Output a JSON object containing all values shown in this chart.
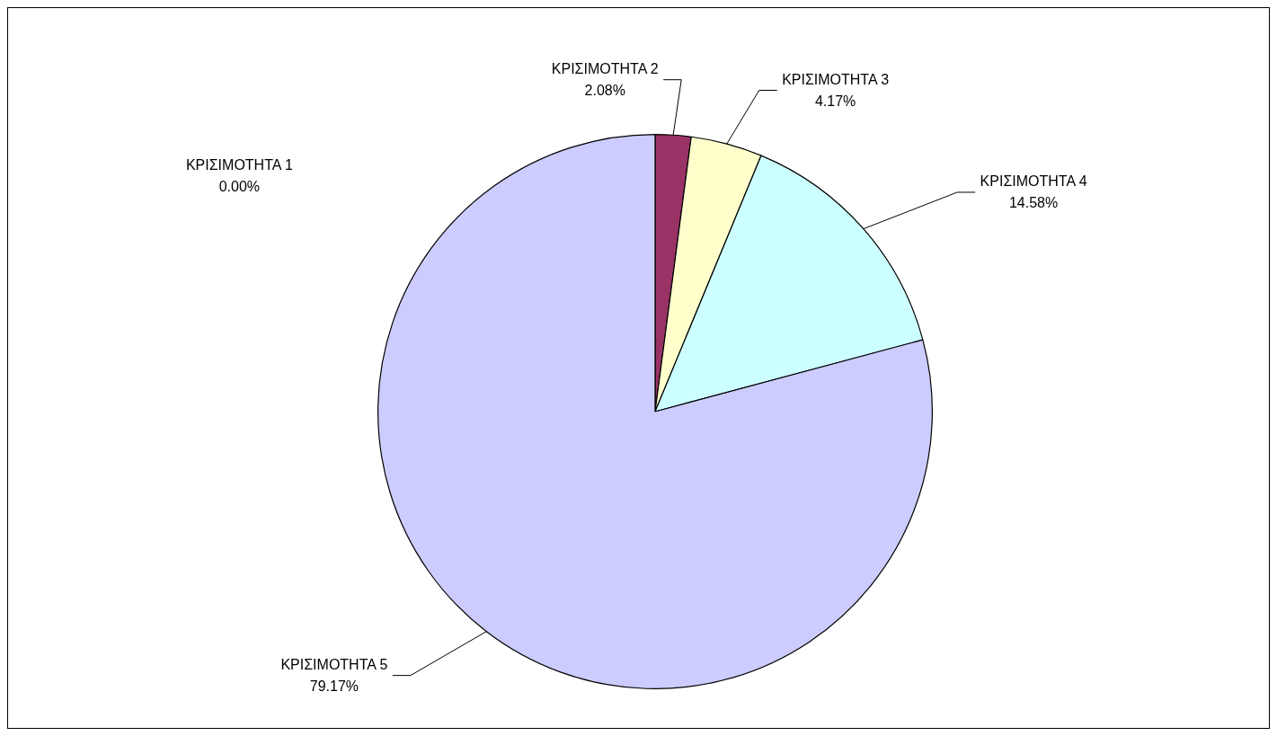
{
  "chart_data": {
    "type": "pie",
    "categories": [
      "ΚΡΙΣΙΜΟΤΗΤΑ 1",
      "ΚΡΙΣΙΜΟΤΗΤΑ 2",
      "ΚΡΙΣΙΜΟΤΗΤΑ 3",
      "ΚΡΙΣΙΜΟΤΗΤΑ 4",
      "ΚΡΙΣΙΜΟΤΗΤΑ 5"
    ],
    "values": [
      0,
      2.08,
      4.17,
      14.58,
      79.17
    ],
    "value_labels": [
      "0.00%",
      "2.08%",
      "4.17%",
      "14.58%",
      "79.17%"
    ],
    "colors": [
      "#9999ff",
      "#993366",
      "#ffffcc",
      "#ccffff",
      "#ccccff"
    ],
    "legend": false
  }
}
